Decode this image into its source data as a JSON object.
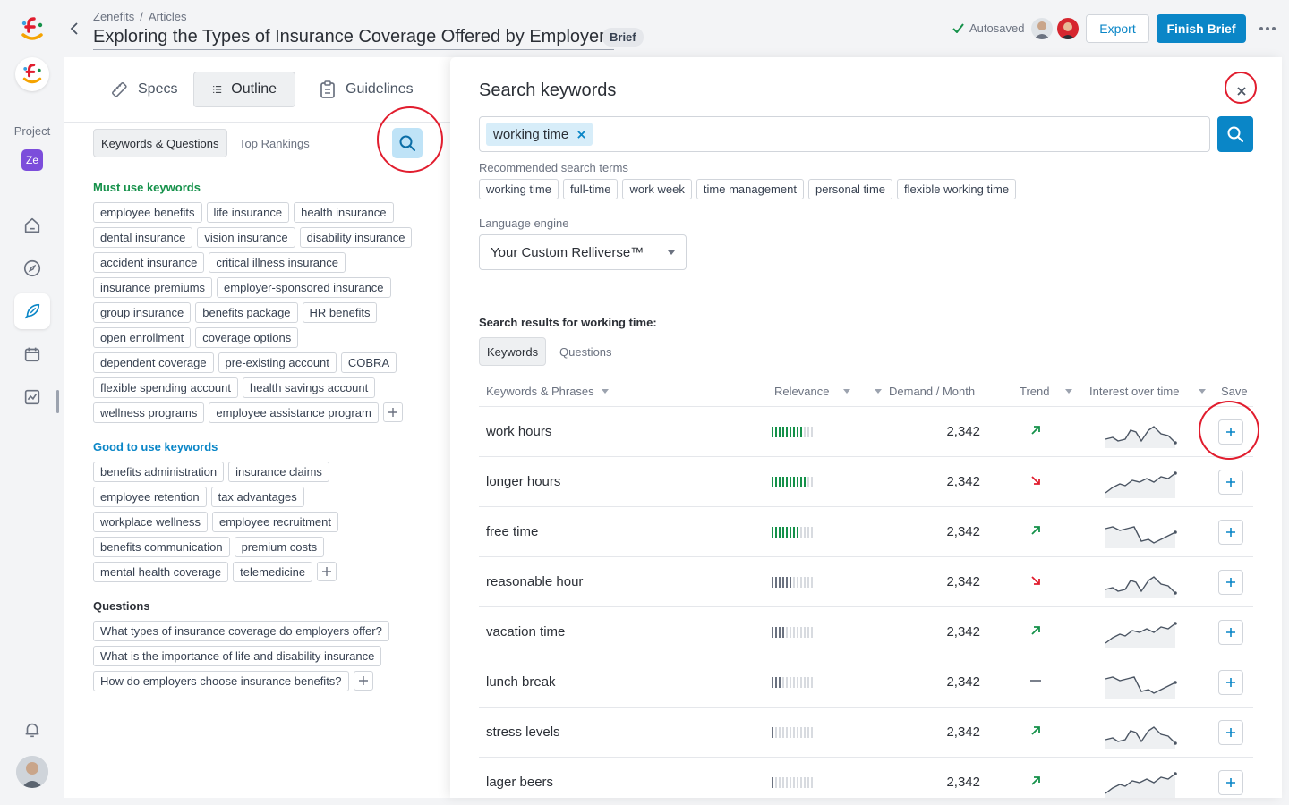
{
  "rail": {
    "project_label": "Project",
    "project_badge": "Ze"
  },
  "header": {
    "breadcrumb": [
      "Zenefits",
      "Articles"
    ],
    "title": "Exploring the Types of Insurance Coverage Offered by Employers",
    "badge": "Brief",
    "autosaved": "Autosaved",
    "export_label": "Export",
    "finish_label": "Finish Brief"
  },
  "left": {
    "tabs": [
      {
        "label": "Specs",
        "icon": "ruler-icon"
      },
      {
        "label": "Outline",
        "icon": "list-icon"
      },
      {
        "label": "Guidelines",
        "icon": "clipboard-icon"
      }
    ],
    "subtabs": [
      "Keywords & Questions",
      "Top Rankings"
    ],
    "must_title": "Must use keywords",
    "must_rows": [
      [
        "employee benefits",
        "life insurance",
        "health insurance"
      ],
      [
        "dental insurance",
        "vision insurance",
        "disability insurance"
      ],
      [
        "accident insurance",
        "critical illness insurance"
      ],
      [
        "insurance premiums",
        "employer-sponsored insurance"
      ],
      [
        "group insurance",
        "benefits package",
        "HR benefits"
      ],
      [
        "open enrollment",
        "coverage options"
      ],
      [
        "dependent coverage",
        "pre-existing account",
        "COBRA"
      ],
      [
        "flexible spending account",
        "health savings account"
      ],
      [
        "wellness programs",
        "employee assistance program"
      ]
    ],
    "good_title": "Good to use keywords",
    "good_rows": [
      [
        "benefits administration",
        "insurance claims"
      ],
      [
        "employee retention",
        "tax advantages"
      ],
      [
        "workplace wellness",
        "employee recruitment"
      ],
      [
        "benefits communication",
        "premium costs"
      ],
      [
        "mental health coverage",
        "telemedicine"
      ]
    ],
    "questions_title": "Questions",
    "questions": [
      "What types of insurance coverage do employers offer?",
      "What is the importance of life and disability insurance",
      "How do employers choose insurance benefits?"
    ]
  },
  "search": {
    "title": "Search keywords",
    "token": "working time",
    "recommended_label": "Recommended search terms",
    "recommended": [
      "working time",
      "full-time",
      "work week",
      "time management",
      "personal time",
      "flexible working time"
    ],
    "language_label": "Language engine",
    "language_value": "Your Custom Relliverse™",
    "results_title": "Search results for working time:",
    "result_tabs": [
      "Keywords",
      "Questions"
    ],
    "columns": [
      "Keywords & Phrases",
      "Relevance",
      "Demand / Month",
      "Trend",
      "Interest over time",
      "Save"
    ],
    "rows": [
      {
        "keyword": "work hours",
        "relevance": 9,
        "tone": "green",
        "demand": "2,342",
        "trend": "up",
        "spark": "a"
      },
      {
        "keyword": "longer hours",
        "relevance": 10,
        "tone": "green",
        "demand": "2,342",
        "trend": "down",
        "spark": "b"
      },
      {
        "keyword": "free time",
        "relevance": 8,
        "tone": "green",
        "demand": "2,342",
        "trend": "up",
        "spark": "c"
      },
      {
        "keyword": "reasonable hour",
        "relevance": 6,
        "tone": "gray",
        "demand": "2,342",
        "trend": "down",
        "spark": "a"
      },
      {
        "keyword": "vacation time",
        "relevance": 4,
        "tone": "gray",
        "demand": "2,342",
        "trend": "up",
        "spark": "b"
      },
      {
        "keyword": "lunch break",
        "relevance": 3,
        "tone": "gray",
        "demand": "2,342",
        "trend": "flat",
        "spark": "c"
      },
      {
        "keyword": "stress levels",
        "relevance": 1,
        "tone": "gray",
        "demand": "2,342",
        "trend": "up",
        "spark": "a"
      },
      {
        "keyword": "lager beers",
        "relevance": 1,
        "tone": "gray",
        "demand": "2,342",
        "trend": "up",
        "spark": "b"
      }
    ]
  },
  "colors": {
    "accent": "#0a86c7",
    "green": "#15914a",
    "red": "#e11d2e"
  }
}
